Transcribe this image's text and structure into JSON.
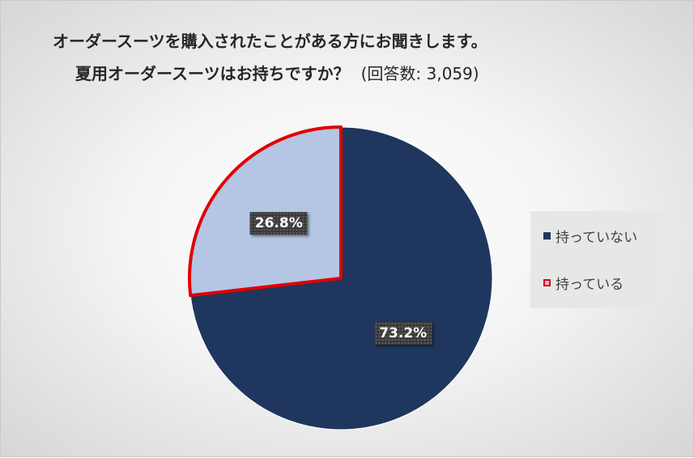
{
  "chart_data": {
    "type": "pie",
    "title_line1": "オーダースーツを購入されたことがある方にお聞きします。",
    "title_line2": "夏用オーダースーツはお持ちですか？",
    "respondents": "(回答数: 3,059)",
    "slices": [
      {
        "label": "持っていない",
        "value": 73.2,
        "display": "73.2%",
        "color": "#1f365f",
        "stroke": "#1f365f"
      },
      {
        "label": "持っている",
        "value": 26.8,
        "display": "26.8%",
        "color": "#b4c6e4",
        "stroke": "#e00000"
      }
    ],
    "start_angle_deg": 0,
    "direction": "clockwise",
    "legend_position": "right"
  }
}
